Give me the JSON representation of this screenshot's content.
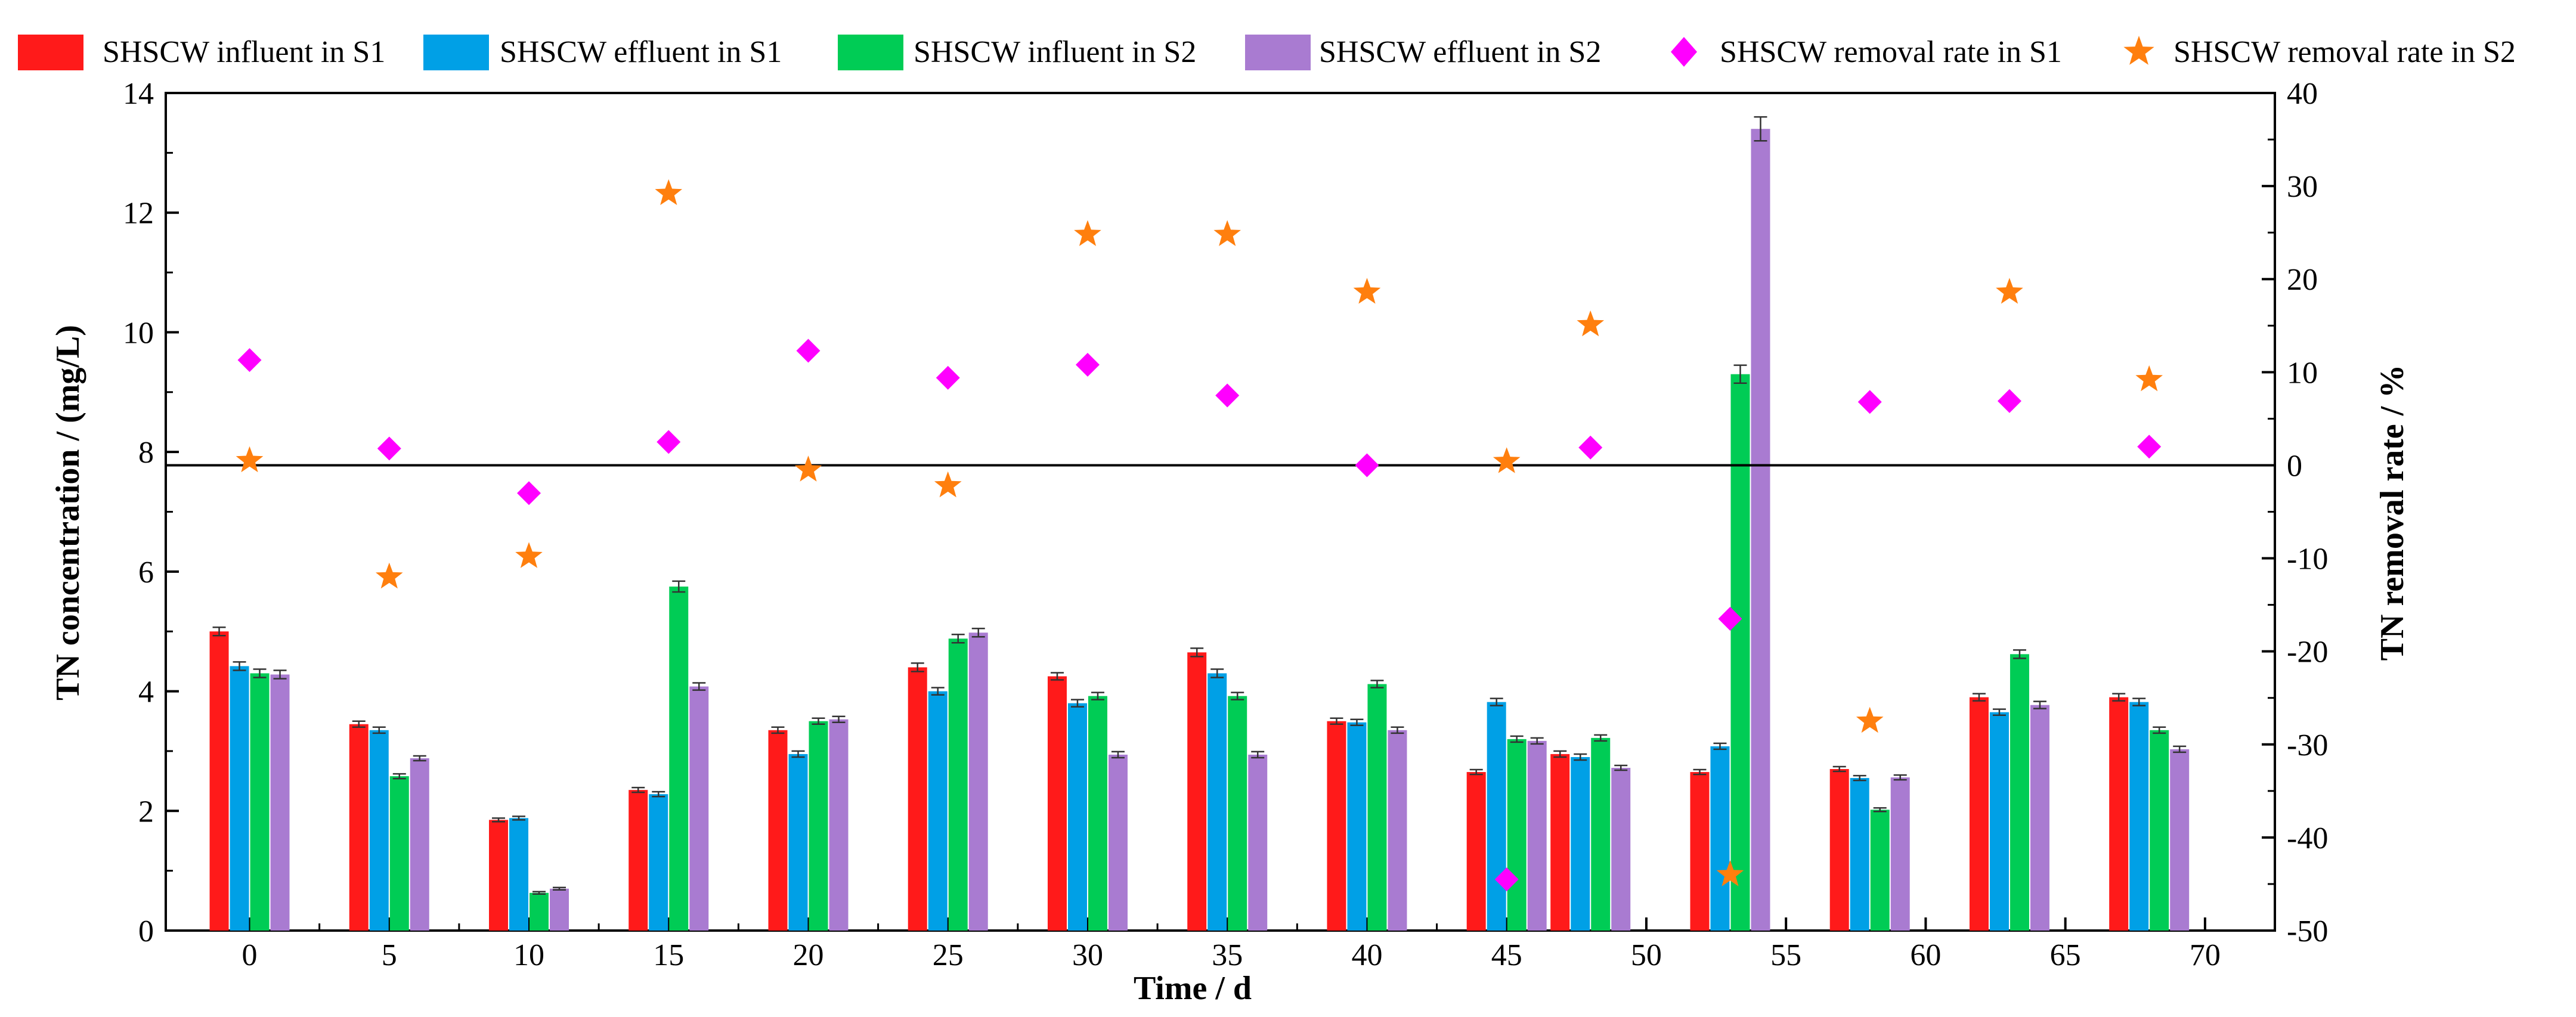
{
  "chart_data": {
    "type": "bar+scatter",
    "xlabel": "Time / d",
    "ylabel_left": "TN concentration / (mg/L)",
    "ylabel_right": "TN removal rate / %",
    "xlim": [
      -3,
      72.5
    ],
    "ylim_left": [
      0,
      14
    ],
    "ylim_right": [
      -50,
      40
    ],
    "x_ticks": [
      0,
      5,
      10,
      15,
      20,
      25,
      30,
      35,
      40,
      45,
      50,
      55,
      60,
      65,
      70
    ],
    "y_ticks_left": [
      0,
      2,
      4,
      6,
      8,
      10,
      12,
      14
    ],
    "y_ticks_right": [
      -50,
      -40,
      -30,
      -20,
      -10,
      0,
      10,
      20,
      30,
      40
    ],
    "reference_line_right": 0,
    "groups_x": [
      0,
      5,
      10,
      15,
      20,
      25,
      30,
      35,
      40,
      45,
      48,
      53,
      58,
      63,
      68
    ],
    "bar_series": [
      {
        "name": "SHSCW influent in S1",
        "color": "#ff1a1a",
        "values": [
          5.0,
          3.45,
          1.85,
          2.35,
          3.35,
          4.4,
          4.25,
          4.65,
          3.5,
          2.65,
          2.95,
          2.65,
          2.7,
          3.9,
          3.9
        ],
        "errors": [
          0.07,
          0.05,
          0.03,
          0.04,
          0.05,
          0.07,
          0.06,
          0.07,
          0.05,
          0.04,
          0.05,
          0.04,
          0.04,
          0.06,
          0.06
        ]
      },
      {
        "name": "SHSCW effluent in S1",
        "color": "#00a0e6",
        "values": [
          4.42,
          3.35,
          1.88,
          2.28,
          2.95,
          4.0,
          3.8,
          4.3,
          3.48,
          3.82,
          2.9,
          3.08,
          2.55,
          3.65,
          3.82
        ],
        "errors": [
          0.07,
          0.05,
          0.03,
          0.04,
          0.05,
          0.06,
          0.06,
          0.07,
          0.05,
          0.06,
          0.05,
          0.05,
          0.04,
          0.05,
          0.06
        ]
      },
      {
        "name": "SHSCW influent in S2",
        "color": "#00cc55",
        "values": [
          4.3,
          2.58,
          0.63,
          5.75,
          3.5,
          4.88,
          3.92,
          3.92,
          4.12,
          3.2,
          3.22,
          9.3,
          2.02,
          4.62,
          3.35
        ],
        "errors": [
          0.07,
          0.04,
          0.02,
          0.09,
          0.05,
          0.07,
          0.06,
          0.06,
          0.06,
          0.05,
          0.05,
          0.15,
          0.03,
          0.07,
          0.05
        ]
      },
      {
        "name": "SHSCW effluent in S2",
        "color": "#a97bd1",
        "values": [
          4.28,
          2.88,
          0.7,
          4.08,
          3.53,
          4.98,
          2.94,
          2.94,
          3.35,
          3.17,
          2.72,
          13.4,
          2.56,
          3.77,
          3.03
        ],
        "errors": [
          0.07,
          0.04,
          0.02,
          0.06,
          0.05,
          0.07,
          0.05,
          0.05,
          0.05,
          0.05,
          0.04,
          0.2,
          0.04,
          0.06,
          0.05
        ]
      }
    ],
    "scatter_series": [
      {
        "name": "SHSCW removal rate in S1",
        "marker": "diamond",
        "color": "#ff00ff",
        "axis": "right",
        "points": [
          [
            0,
            11.3
          ],
          [
            5,
            1.8
          ],
          [
            10,
            -3.0
          ],
          [
            15,
            2.5
          ],
          [
            20,
            12.3
          ],
          [
            25,
            9.4
          ],
          [
            30,
            10.8
          ],
          [
            35,
            7.5
          ],
          [
            40,
            0
          ],
          [
            45,
            -44.5
          ],
          [
            48,
            1.9
          ],
          [
            53,
            -16.5
          ],
          [
            58,
            6.8
          ],
          [
            63,
            6.9
          ],
          [
            68,
            2.0
          ]
        ]
      },
      {
        "name": "SHSCW removal rate in S2",
        "marker": "star",
        "color": "#ff7f0e",
        "axis": "right",
        "points": [
          [
            0,
            0.5
          ],
          [
            5,
            -12.0
          ],
          [
            10,
            -9.8
          ],
          [
            15,
            29.2
          ],
          [
            20,
            -0.5
          ],
          [
            25,
            -2.2
          ],
          [
            30,
            24.8
          ],
          [
            35,
            24.8
          ],
          [
            40,
            18.6
          ],
          [
            45,
            0.4
          ],
          [
            48,
            15.1
          ],
          [
            53,
            -44.0
          ],
          [
            58,
            -27.5
          ],
          [
            63,
            18.6
          ],
          [
            68,
            9.2
          ]
        ]
      }
    ]
  }
}
